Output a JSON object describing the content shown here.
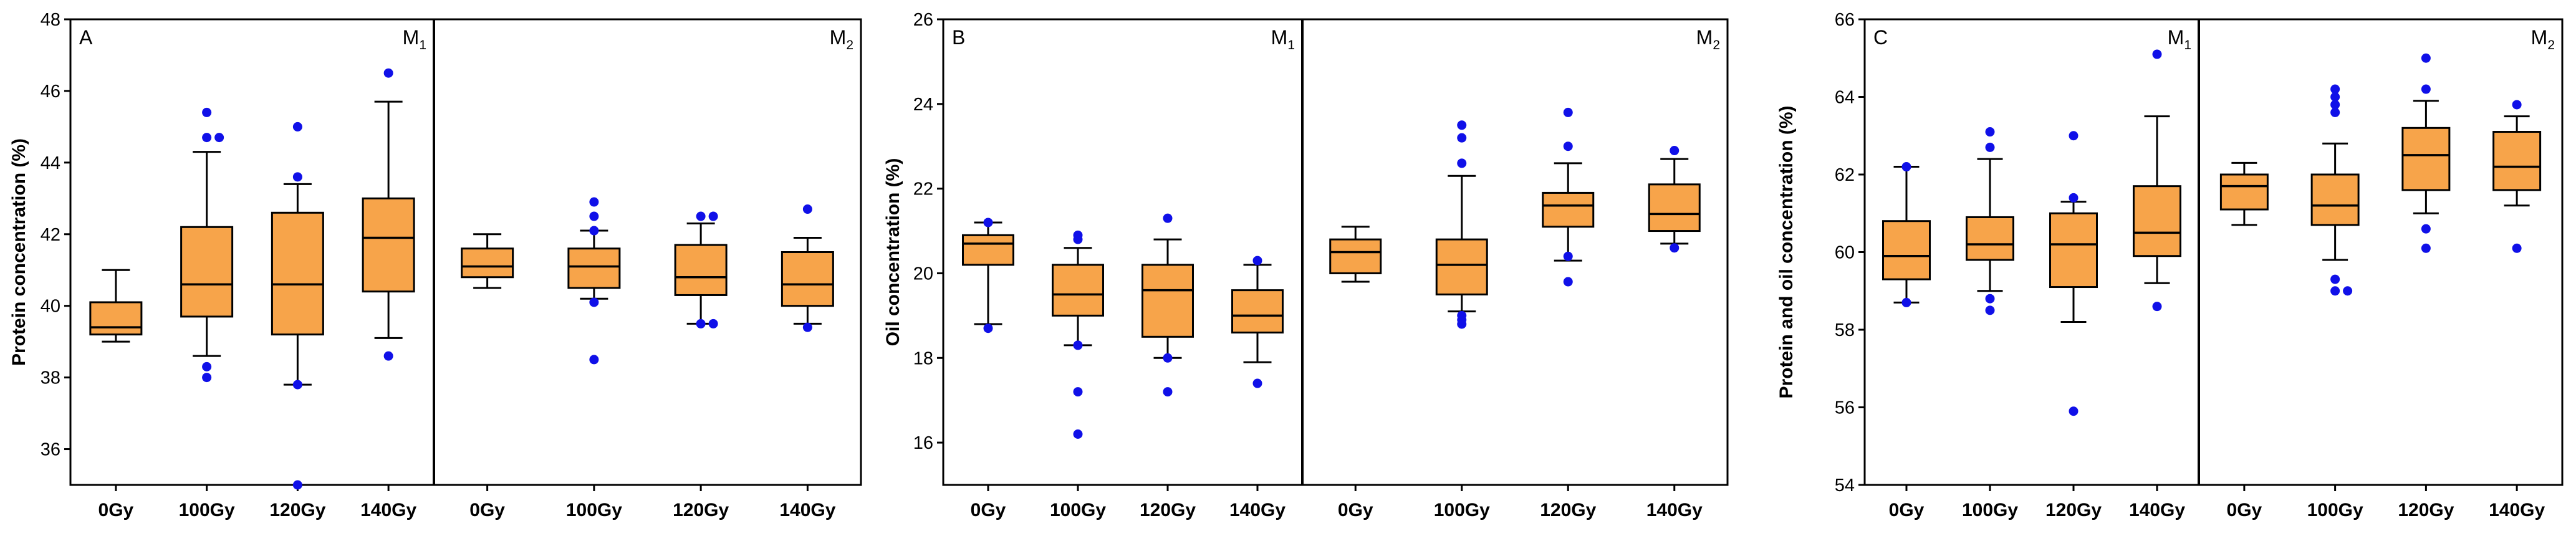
{
  "colors": {
    "box_fill": "#F7A44A",
    "outlier": "#1010E8",
    "line": "#000000"
  },
  "chart_data": [
    {
      "type": "boxplot",
      "panel_label": "A",
      "ylabel": "Protein concentration (%)",
      "ylim": [
        35,
        48
      ],
      "yticks": [
        36,
        38,
        40,
        42,
        44,
        46,
        48
      ],
      "groups": [
        {
          "label": "M",
          "sub": "1"
        },
        {
          "label": "M",
          "sub": "2"
        }
      ],
      "categories": [
        "0Gy",
        "100Gy",
        "120Gy",
        "140Gy",
        "0Gy",
        "100Gy",
        "120Gy",
        "140Gy"
      ],
      "boxes": [
        {
          "group": 0,
          "whisker_low": 39.0,
          "q1": 39.2,
          "median": 39.4,
          "q3": 40.1,
          "whisker_high": 41.0,
          "outliers": []
        },
        {
          "group": 0,
          "whisker_low": 38.6,
          "q1": 39.7,
          "median": 40.6,
          "q3": 42.2,
          "whisker_high": 44.3,
          "outliers": [
            38.3,
            38.0,
            44.7,
            44.7,
            45.4
          ]
        },
        {
          "group": 0,
          "whisker_low": 37.8,
          "q1": 39.2,
          "median": 40.6,
          "q3": 42.6,
          "whisker_high": 43.4,
          "outliers": [
            37.8,
            35.0,
            43.6,
            45.0
          ]
        },
        {
          "group": 0,
          "whisker_low": 39.1,
          "q1": 40.4,
          "median": 41.9,
          "q3": 43.0,
          "whisker_high": 45.7,
          "outliers": [
            38.6,
            46.5
          ]
        },
        {
          "group": 1,
          "whisker_low": 40.5,
          "q1": 40.8,
          "median": 41.1,
          "q3": 41.6,
          "whisker_high": 42.0,
          "outliers": []
        },
        {
          "group": 1,
          "whisker_low": 40.2,
          "q1": 40.5,
          "median": 41.1,
          "q3": 41.6,
          "whisker_high": 42.1,
          "outliers": [
            38.5,
            40.1,
            42.1,
            42.5,
            42.9
          ]
        },
        {
          "group": 1,
          "whisker_low": 39.5,
          "q1": 40.3,
          "median": 40.8,
          "q3": 41.7,
          "whisker_high": 42.3,
          "outliers": [
            39.5,
            39.5,
            42.5,
            42.5
          ]
        },
        {
          "group": 1,
          "whisker_low": 39.5,
          "q1": 40.0,
          "median": 40.6,
          "q3": 41.5,
          "whisker_high": 41.9,
          "outliers": [
            39.4,
            42.7
          ]
        }
      ]
    },
    {
      "type": "boxplot",
      "panel_label": "B",
      "ylabel": "Oil concentration (%)",
      "ylim": [
        15,
        26
      ],
      "yticks": [
        16,
        18,
        20,
        22,
        24,
        26
      ],
      "groups": [
        {
          "label": "M",
          "sub": "1"
        },
        {
          "label": "M",
          "sub": "2"
        }
      ],
      "categories": [
        "0Gy",
        "100Gy",
        "120Gy",
        "140Gy",
        "0Gy",
        "100Gy",
        "120Gy",
        "140Gy"
      ],
      "boxes": [
        {
          "group": 0,
          "whisker_low": 18.8,
          "q1": 20.2,
          "median": 20.7,
          "q3": 20.9,
          "whisker_high": 21.2,
          "outliers": [
            18.7,
            21.2
          ]
        },
        {
          "group": 0,
          "whisker_low": 18.3,
          "q1": 19.0,
          "median": 19.5,
          "q3": 20.2,
          "whisker_high": 20.6,
          "outliers": [
            18.3,
            17.2,
            16.2,
            20.8,
            20.9
          ]
        },
        {
          "group": 0,
          "whisker_low": 18.0,
          "q1": 18.5,
          "median": 19.6,
          "q3": 20.2,
          "whisker_high": 20.8,
          "outliers": [
            18.0,
            17.2,
            21.3
          ]
        },
        {
          "group": 0,
          "whisker_low": 17.9,
          "q1": 18.6,
          "median": 19.0,
          "q3": 19.6,
          "whisker_high": 20.2,
          "outliers": [
            17.4,
            20.3
          ]
        },
        {
          "group": 1,
          "whisker_low": 19.8,
          "q1": 20.0,
          "median": 20.5,
          "q3": 20.8,
          "whisker_high": 21.1,
          "outliers": []
        },
        {
          "group": 1,
          "whisker_low": 19.1,
          "q1": 19.5,
          "median": 20.2,
          "q3": 20.8,
          "whisker_high": 22.3,
          "outliers": [
            18.8,
            18.9,
            19.0,
            22.6,
            23.2,
            23.5
          ]
        },
        {
          "group": 1,
          "whisker_low": 20.3,
          "q1": 21.1,
          "median": 21.6,
          "q3": 21.9,
          "whisker_high": 22.6,
          "outliers": [
            19.8,
            20.4,
            23.0,
            23.8
          ]
        },
        {
          "group": 1,
          "whisker_low": 20.7,
          "q1": 21.0,
          "median": 21.4,
          "q3": 22.1,
          "whisker_high": 22.7,
          "outliers": [
            20.6,
            22.9
          ]
        }
      ]
    },
    {
      "type": "boxplot",
      "panel_label": "C",
      "ylabel": "Protein and oil concentration (%)",
      "ylim": [
        54,
        66
      ],
      "yticks": [
        54,
        56,
        58,
        60,
        62,
        64,
        66
      ],
      "groups": [
        {
          "label": "M",
          "sub": "1"
        },
        {
          "label": "M",
          "sub": "2"
        }
      ],
      "categories": [
        "0Gy",
        "100Gy",
        "120Gy",
        "140Gy",
        "0Gy",
        "100Gy",
        "120Gy",
        "140Gy"
      ],
      "boxes": [
        {
          "group": 0,
          "whisker_low": 58.7,
          "q1": 59.3,
          "median": 59.9,
          "q3": 60.8,
          "whisker_high": 62.2,
          "outliers": [
            58.7,
            62.2
          ]
        },
        {
          "group": 0,
          "whisker_low": 59.0,
          "q1": 59.8,
          "median": 60.2,
          "q3": 60.9,
          "whisker_high": 62.4,
          "outliers": [
            58.8,
            58.5,
            62.7,
            63.1
          ]
        },
        {
          "group": 0,
          "whisker_low": 58.2,
          "q1": 59.1,
          "median": 60.2,
          "q3": 61.0,
          "whisker_high": 61.3,
          "outliers": [
            55.9,
            61.4,
            63.0
          ]
        },
        {
          "group": 0,
          "whisker_low": 59.2,
          "q1": 59.9,
          "median": 60.5,
          "q3": 61.7,
          "whisker_high": 63.5,
          "outliers": [
            58.6,
            65.1
          ]
        },
        {
          "group": 1,
          "whisker_low": 60.7,
          "q1": 61.1,
          "median": 61.7,
          "q3": 62.0,
          "whisker_high": 62.3,
          "outliers": []
        },
        {
          "group": 1,
          "whisker_low": 59.8,
          "q1": 60.7,
          "median": 61.2,
          "q3": 62.0,
          "whisker_high": 62.8,
          "outliers": [
            59.0,
            59.0,
            59.3,
            63.6,
            63.8,
            64.0,
            64.2
          ]
        },
        {
          "group": 1,
          "whisker_low": 61.0,
          "q1": 61.6,
          "median": 62.5,
          "q3": 63.2,
          "whisker_high": 63.9,
          "outliers": [
            60.1,
            60.6,
            64.2,
            65.0
          ]
        },
        {
          "group": 1,
          "whisker_low": 61.2,
          "q1": 61.6,
          "median": 62.2,
          "q3": 63.1,
          "whisker_high": 63.5,
          "outliers": [
            60.1,
            63.8
          ]
        }
      ]
    }
  ]
}
